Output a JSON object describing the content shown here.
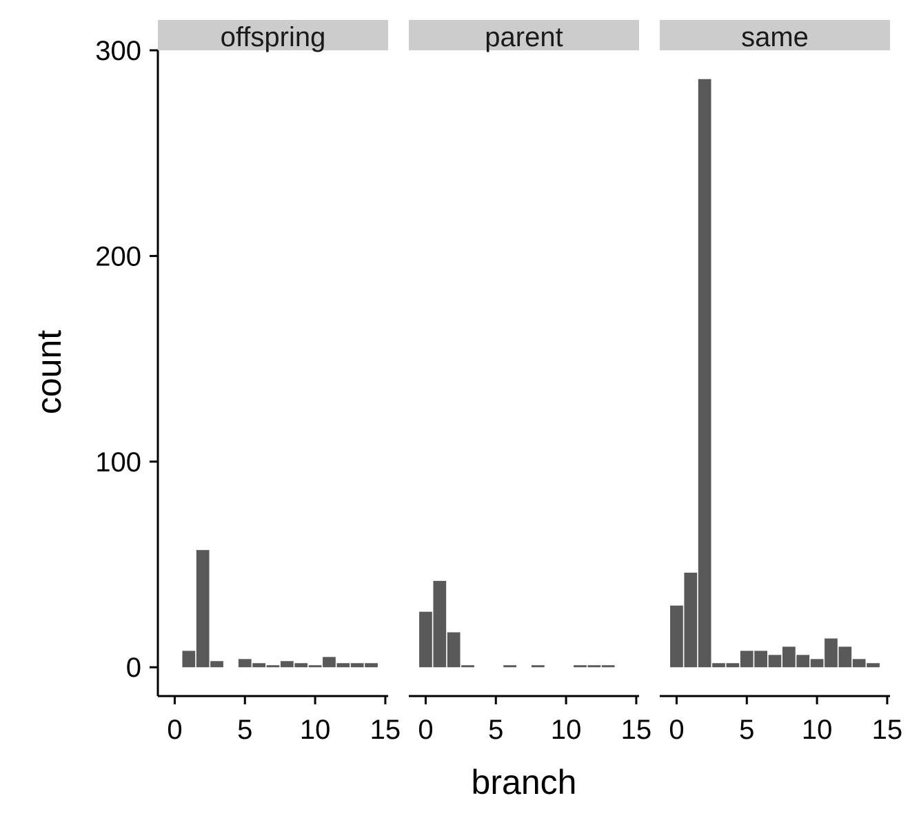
{
  "chart_data": {
    "type": "bar",
    "title": "",
    "xlabel": "branch",
    "ylabel": "count",
    "xlim": [
      -1.2,
      15.2
    ],
    "ylim": [
      -14,
      300
    ],
    "x_ticks": [
      0,
      5,
      10,
      15
    ],
    "y_ticks": [
      0,
      100,
      200,
      300
    ],
    "bar_color": "#595959",
    "strip_color": "#cccccc",
    "axis_color": "#000000",
    "x": [
      0,
      1,
      2,
      3,
      4,
      5,
      6,
      7,
      8,
      9,
      10,
      11,
      12,
      13,
      14
    ],
    "panels": [
      {
        "name": "offspring",
        "values": [
          0,
          8,
          57,
          3,
          0,
          4,
          2,
          1,
          3,
          2,
          1,
          5,
          2,
          2,
          2
        ]
      },
      {
        "name": "parent",
        "values": [
          27,
          42,
          17,
          1,
          0,
          0,
          1,
          0,
          1,
          0,
          0,
          1,
          1,
          1,
          0
        ]
      },
      {
        "name": "same",
        "values": [
          30,
          46,
          286,
          2,
          2,
          8,
          8,
          6,
          10,
          6,
          4,
          14,
          10,
          4,
          2
        ]
      }
    ]
  }
}
